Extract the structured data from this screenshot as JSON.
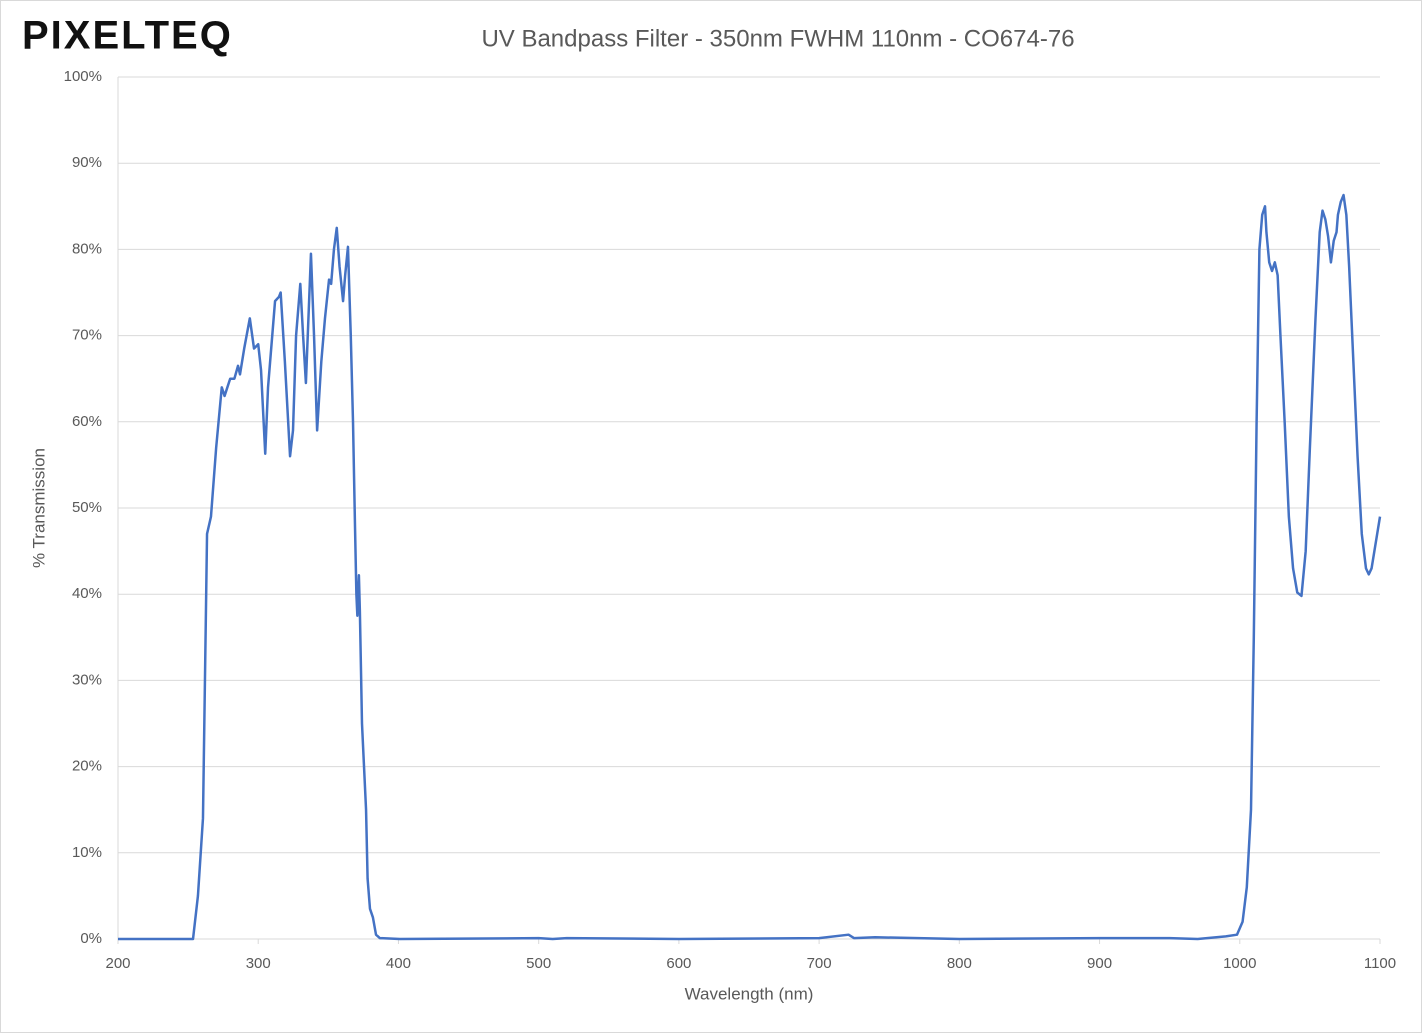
{
  "logo": "PIXELTEQ",
  "chart_data": {
    "type": "line",
    "title": "UV Bandpass Filter - 350nm FWHM 110nm - CO674-76",
    "x_label": "Wavelength (nm)",
    "y_label": "% Transmission",
    "xlim": [
      200,
      1100
    ],
    "xticks": [
      200,
      300,
      400,
      500,
      600,
      700,
      800,
      900,
      1000,
      1100
    ],
    "ylim": [
      0,
      100
    ],
    "yticks": [
      {
        "value": 0,
        "label": "0%"
      },
      {
        "value": 10,
        "label": "10%"
      },
      {
        "value": 20,
        "label": "20%"
      },
      {
        "value": 30,
        "label": "30%"
      },
      {
        "value": 40,
        "label": "40%"
      },
      {
        "value": 50,
        "label": "50%"
      },
      {
        "value": 60,
        "label": "60%"
      },
      {
        "value": 70,
        "label": "70%"
      },
      {
        "value": 80,
        "label": "80%"
      },
      {
        "value": 90,
        "label": "90%"
      },
      {
        "value": 100,
        "label": "100%"
      }
    ],
    "grid": true,
    "x": [
      200,
      250,
      253.5,
      257,
      260.6,
      263.5,
      266.3,
      270,
      274,
      276,
      280,
      283,
      285.6,
      287,
      290,
      294,
      297,
      300,
      302,
      305,
      307,
      309,
      312,
      314.8,
      316,
      319,
      322.7,
      324.8,
      327,
      330,
      332,
      334,
      337.6,
      339.8,
      342,
      345,
      347.6,
      350.5,
      352,
      354,
      356,
      358,
      360.5,
      362,
      364,
      366,
      367.6,
      369,
      370,
      370.7,
      371.8,
      372.5,
      374,
      376.9,
      378,
      379.7,
      381.8,
      384,
      386.8,
      401,
      500,
      510,
      520,
      600,
      700,
      721,
      725,
      740,
      800,
      900,
      950,
      970,
      990,
      998,
      1002,
      1005,
      1008,
      1010,
      1012,
      1014,
      1016,
      1018,
      1019,
      1021,
      1023,
      1025,
      1027,
      1029,
      1032,
      1035,
      1038,
      1041,
      1044,
      1047,
      1050,
      1054,
      1057,
      1059,
      1061,
      1063,
      1065,
      1067,
      1069,
      1070,
      1072,
      1074,
      1076,
      1078,
      1081,
      1084,
      1087,
      1090,
      1092,
      1094,
      1096,
      1098,
      1100
    ],
    "series": [
      {
        "name": "Transmission",
        "color": "#4472c4",
        "values": [
          0,
          0,
          0,
          5,
          14,
          47,
          49,
          57,
          64,
          63,
          65,
          65,
          66.5,
          65.5,
          68.5,
          72,
          68.5,
          69,
          66,
          56.3,
          64,
          68,
          74,
          74.5,
          75,
          67,
          56,
          59,
          70,
          76,
          70,
          64.5,
          79.5,
          70,
          59,
          67,
          72,
          76.5,
          76,
          80,
          82.5,
          78,
          74,
          77,
          80.3,
          70,
          60,
          48,
          40,
          37.5,
          42.2,
          38,
          25,
          15,
          7,
          3.5,
          2.5,
          0.5,
          0.1,
          0,
          0.1,
          0,
          0.1,
          0,
          0.1,
          0.5,
          0.1,
          0.2,
          0,
          0.1,
          0.1,
          0,
          0.3,
          0.5,
          2,
          6,
          15,
          35,
          60,
          80,
          84,
          85,
          82,
          78.5,
          77.5,
          78.5,
          77,
          70,
          60,
          49,
          43,
          40.2,
          39.8,
          45,
          57,
          72,
          82,
          84.5,
          83.5,
          81.5,
          78.5,
          81,
          82,
          84,
          85.5,
          86.3,
          84,
          78,
          67,
          56,
          47,
          43,
          42.3,
          43,
          45,
          47,
          49
        ]
      }
    ]
  }
}
